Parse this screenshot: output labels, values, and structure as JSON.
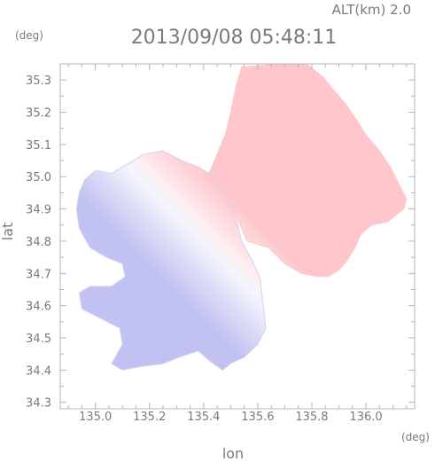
{
  "chart_data": {
    "type": "heatmap",
    "title": "2013/09/08 05:48:11",
    "altitude_label": "ALT(km) 2.0",
    "xlabel": "lon",
    "ylabel": "lat",
    "x_unit": "(deg)",
    "y_unit": "(deg)",
    "xlim": [
      134.87,
      136.18
    ],
    "ylim": [
      34.28,
      35.35
    ],
    "x_ticks": [
      "135.0",
      "135.2",
      "135.4",
      "135.6",
      "135.8",
      "136.0"
    ],
    "y_ticks": [
      "34.3",
      "34.4",
      "34.5",
      "34.6",
      "34.7",
      "34.8",
      "34.9",
      "35.0",
      "35.1",
      "35.2",
      "35.3"
    ],
    "grid": false,
    "color_scale": {
      "negative": "#8f8fe6",
      "zero": "#ffffff",
      "positive": "#ff9ea6"
    },
    "regions": [
      {
        "name": "positive-velocity-region",
        "color": "#ffc8cc",
        "polygon": [
          [
            135.54,
            35.34
          ],
          [
            135.68,
            35.35
          ],
          [
            135.78,
            35.35
          ],
          [
            135.84,
            35.31
          ],
          [
            135.88,
            35.27
          ],
          [
            135.93,
            35.22
          ],
          [
            135.97,
            35.17
          ],
          [
            136.0,
            35.13
          ],
          [
            136.05,
            35.08
          ],
          [
            136.09,
            35.03
          ],
          [
            136.12,
            34.98
          ],
          [
            136.15,
            34.93
          ],
          [
            136.14,
            34.9
          ],
          [
            136.08,
            34.86
          ],
          [
            136.02,
            34.85
          ],
          [
            135.98,
            34.82
          ],
          [
            135.96,
            34.78
          ],
          [
            135.93,
            34.74
          ],
          [
            135.9,
            34.71
          ],
          [
            135.86,
            34.69
          ],
          [
            135.82,
            34.69
          ],
          [
            135.76,
            34.7
          ],
          [
            135.7,
            34.73
          ],
          [
            135.64,
            34.78
          ],
          [
            135.56,
            34.8
          ],
          [
            135.52,
            34.88
          ],
          [
            135.47,
            34.96
          ],
          [
            135.42,
            35.01
          ],
          [
            135.45,
            35.07
          ],
          [
            135.48,
            35.13
          ],
          [
            135.5,
            35.2
          ],
          [
            135.52,
            35.28
          ]
        ]
      },
      {
        "name": "negative-velocity-region",
        "color": "#d2d2f6",
        "polygon": [
          [
            134.96,
            34.99
          ],
          [
            135.0,
            35.02
          ],
          [
            135.06,
            35.01
          ],
          [
            135.12,
            35.04
          ],
          [
            135.18,
            35.07
          ],
          [
            135.25,
            35.08
          ],
          [
            135.32,
            35.05
          ],
          [
            135.38,
            35.03
          ],
          [
            135.44,
            35.0
          ],
          [
            135.49,
            34.93
          ],
          [
            135.52,
            34.87
          ],
          [
            135.54,
            34.8
          ],
          [
            135.58,
            34.74
          ],
          [
            135.61,
            34.68
          ],
          [
            135.62,
            34.6
          ],
          [
            135.63,
            34.53
          ],
          [
            135.6,
            34.48
          ],
          [
            135.55,
            34.44
          ],
          [
            135.5,
            34.42
          ],
          [
            135.47,
            34.4
          ],
          [
            135.42,
            34.43
          ],
          [
            135.38,
            34.46
          ],
          [
            135.31,
            34.44
          ],
          [
            135.25,
            34.42
          ],
          [
            135.16,
            34.41
          ],
          [
            135.1,
            34.4
          ],
          [
            135.06,
            34.42
          ],
          [
            135.1,
            34.48
          ],
          [
            135.09,
            34.53
          ],
          [
            135.02,
            34.56
          ],
          [
            134.95,
            34.59
          ],
          [
            134.94,
            34.64
          ],
          [
            134.98,
            34.66
          ],
          [
            135.06,
            34.66
          ],
          [
            135.11,
            34.69
          ],
          [
            135.1,
            34.73
          ],
          [
            135.04,
            34.75
          ],
          [
            134.98,
            34.78
          ],
          [
            134.94,
            34.84
          ],
          [
            134.93,
            34.9
          ],
          [
            134.94,
            34.95
          ]
        ]
      }
    ]
  }
}
